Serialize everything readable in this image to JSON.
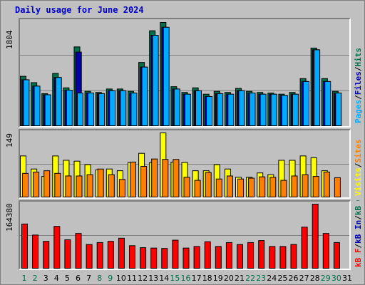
{
  "title": "Daily usage for June 2024",
  "panels": {
    "top": {
      "max_label": "1804",
      "legend": [
        {
          "text": "Pages",
          "color": "#00aaff"
        },
        {
          "text": "Files",
          "color": "#0000aa"
        },
        {
          "text": "Hits",
          "color": "#006f4a"
        }
      ]
    },
    "middle": {
      "max_label": "149",
      "legend": [
        {
          "text": "Visits",
          "color": "#ffff00"
        },
        {
          "text": "Sites",
          "color": "#ff8000"
        }
      ]
    },
    "bottom": {
      "max_label": "164380",
      "legend": [
        {
          "text": "kB F",
          "color": "#ff0000"
        },
        {
          "text": "kB In",
          "color": "#0000aa"
        },
        {
          "text": "kB Out",
          "color": "#006f4a"
        }
      ]
    }
  },
  "chart_data": {
    "type": "bar",
    "categories": [
      "1",
      "2",
      "3",
      "4",
      "5",
      "6",
      "7",
      "8",
      "9",
      "10",
      "11",
      "12",
      "13",
      "14",
      "15",
      "16",
      "17",
      "18",
      "19",
      "20",
      "21",
      "22",
      "23",
      "24",
      "25",
      "26",
      "27",
      "28",
      "29",
      "30",
      "31"
    ],
    "weekend_days": [
      "1",
      "2",
      "8",
      "9",
      "15",
      "16",
      "22",
      "23",
      "29",
      "30"
    ],
    "colors": {
      "hits": "#006f4a",
      "files": "#0000aa",
      "pages": "#00aaff",
      "visits": "#ffff00",
      "sites": "#ff8000",
      "kb": "#ff0000",
      "weekend_label": "#006f4a",
      "weekday_label": "#000000"
    },
    "usage": {
      "ylim": [
        0,
        1804
      ],
      "series": [
        {
          "name": "Hits",
          "values": [
            870,
            760,
            570,
            920,
            670,
            1380,
            610,
            590,
            650,
            650,
            610,
            1110,
            1660,
            1804,
            690,
            590,
            670,
            560,
            610,
            590,
            660,
            610,
            590,
            580,
            560,
            590,
            830,
            1360,
            830,
            610,
            0
          ]
        },
        {
          "name": "Files",
          "values": [
            810,
            700,
            550,
            850,
            630,
            1290,
            580,
            570,
            620,
            620,
            580,
            1030,
            1580,
            1720,
            650,
            560,
            620,
            520,
            570,
            560,
            620,
            580,
            560,
            560,
            540,
            560,
            780,
            1330,
            780,
            580,
            0
          ]
        },
        {
          "name": "Pages",
          "values": [
            810,
            700,
            550,
            850,
            630,
            580,
            580,
            570,
            620,
            620,
            580,
            1030,
            1580,
            1720,
            650,
            560,
            620,
            520,
            570,
            560,
            620,
            580,
            560,
            560,
            540,
            560,
            780,
            1330,
            780,
            580,
            0
          ]
        }
      ]
    },
    "visitors": {
      "ylim": [
        0,
        149
      ],
      "series": [
        {
          "name": "Visits",
          "values": [
            96,
            66,
            49,
            96,
            86,
            84,
            76,
            64,
            66,
            62,
            81,
            102,
            81,
            149,
            82,
            81,
            62,
            62,
            76,
            66,
            47,
            47,
            57,
            53,
            86,
            86,
            96,
            92,
            62,
            0,
            0
          ]
        },
        {
          "name": "Sites",
          "values": [
            56,
            59,
            62,
            56,
            50,
            50,
            53,
            66,
            53,
            42,
            82,
            72,
            89,
            88,
            88,
            47,
            40,
            58,
            43,
            50,
            43,
            45,
            48,
            47,
            40,
            50,
            53,
            49,
            59,
            46,
            0
          ]
        }
      ]
    },
    "kbytes": {
      "ylim": [
        0,
        164380
      ],
      "series": [
        {
          "name": "kB F",
          "values": [
            114000,
            86000,
            70000,
            108000,
            74000,
            90000,
            62000,
            67000,
            70000,
            78000,
            59000,
            54000,
            53000,
            52000,
            73000,
            53000,
            57000,
            69000,
            57000,
            67000,
            62000,
            67000,
            72000,
            57000,
            57000,
            62000,
            106000,
            164380,
            90000,
            67000,
            0
          ]
        }
      ]
    }
  }
}
